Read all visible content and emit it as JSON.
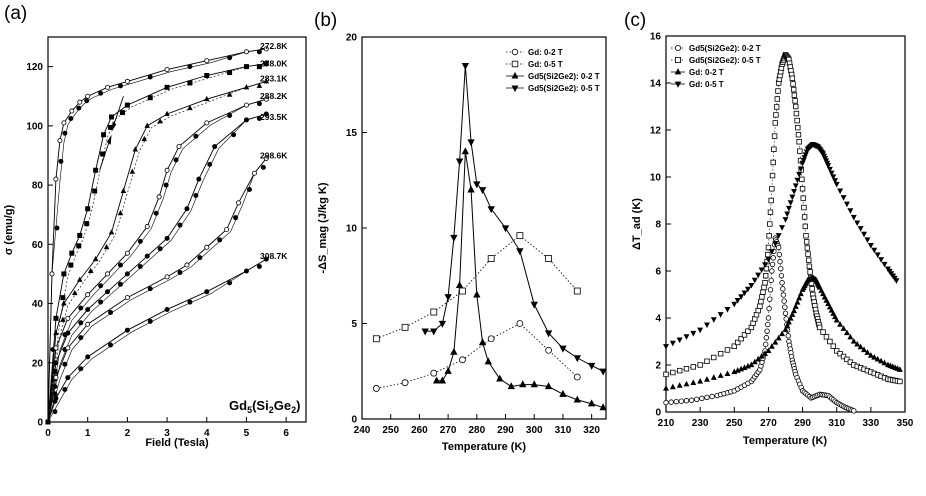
{
  "figure": {
    "panel_labels": [
      "(a)",
      "(b)",
      "(c)"
    ]
  },
  "chart_data": [
    {
      "id": "a",
      "type": "line",
      "xlabel": "Field (Tesla)",
      "ylabel": "σ (emu/g)",
      "xlim": [
        0,
        6.5
      ],
      "ylim": [
        0,
        130
      ],
      "xticks": [
        0,
        1,
        2,
        3,
        4,
        5,
        6
      ],
      "yticks": [
        0,
        20,
        40,
        60,
        80,
        100,
        120
      ],
      "annotation": "Gd5(Si2Ge2)",
      "series": [
        {
          "name": "272.8K",
          "label_y": 127,
          "x": [
            0,
            0.1,
            0.2,
            0.3,
            0.4,
            0.6,
            0.8,
            1,
            1.5,
            2,
            3,
            4,
            5,
            5.5
          ],
          "y": [
            0,
            50,
            82,
            95,
            101,
            105,
            108,
            110,
            113,
            115,
            119,
            122,
            125,
            126
          ]
        },
        {
          "name": "278.0K",
          "label_y": 121,
          "x": [
            0,
            0.2,
            0.4,
            0.6,
            0.8,
            1,
            1.2,
            1.4,
            1.6,
            2,
            3,
            4,
            5,
            5.5
          ],
          "y": [
            0,
            35,
            50,
            57,
            63,
            72,
            85,
            97,
            103,
            107,
            113,
            117,
            120,
            121
          ]
        },
        {
          "name": "283.1K",
          "label_y": 116,
          "x": [
            0,
            0.2,
            0.4,
            0.8,
            1.2,
            1.6,
            1.9,
            2.2,
            2.5,
            3,
            4,
            5,
            5.5
          ],
          "y": [
            0,
            30,
            40,
            48,
            55,
            64,
            78,
            92,
            100,
            104,
            109,
            113,
            115
          ]
        },
        {
          "name": "288.2K",
          "label_y": 110,
          "x": [
            0,
            0.2,
            0.5,
            1,
            1.5,
            2,
            2.5,
            2.8,
            3,
            3.3,
            4,
            5,
            5.5
          ],
          "y": [
            0,
            25,
            35,
            43,
            50,
            57,
            66,
            76,
            85,
            93,
            101,
            107,
            109
          ]
        },
        {
          "name": "293.5K",
          "label_y": 103,
          "x": [
            0,
            0.2,
            0.5,
            1,
            1.5,
            2,
            2.5,
            3,
            3.5,
            3.8,
            4.2,
            5,
            5.5
          ],
          "y": [
            0,
            20,
            30,
            38,
            44,
            50,
            56,
            62,
            72,
            82,
            93,
            102,
            104
          ]
        },
        {
          "name": "298.6K",
          "label_y": 90,
          "x": [
            0,
            0.2,
            0.5,
            1,
            2,
            3,
            3.5,
            4,
            4.5,
            4.8,
            5.2,
            5.5
          ],
          "y": [
            0,
            15,
            25,
            33,
            42,
            49,
            53,
            59,
            65,
            74,
            84,
            89
          ]
        },
        {
          "name": "308.7K",
          "label_y": 56,
          "x": [
            0,
            0.2,
            0.5,
            1,
            2,
            3,
            4,
            5,
            5.5
          ],
          "y": [
            0,
            8,
            15,
            22,
            31,
            38,
            44,
            51,
            55
          ]
        }
      ]
    },
    {
      "id": "b",
      "type": "line",
      "xlabel": "Temperature (K)",
      "ylabel": "-ΔS_mag (J/kg K)",
      "xlim": [
        240,
        325
      ],
      "ylim": [
        0,
        20
      ],
      "xticks": [
        240,
        250,
        260,
        270,
        280,
        290,
        300,
        310,
        320
      ],
      "yticks": [
        0,
        5,
        10,
        15,
        20
      ],
      "series": [
        {
          "name": "Gd: 0-2 T",
          "marker": "circle-open",
          "x": [
            245,
            255,
            265,
            275,
            285,
            295,
            305,
            315
          ],
          "y": [
            1.6,
            1.9,
            2.4,
            3.1,
            4.2,
            5.0,
            3.6,
            2.2
          ]
        },
        {
          "name": "Gd: 0-5 T",
          "marker": "square-open",
          "x": [
            245,
            255,
            265,
            275,
            285,
            295,
            305,
            315
          ],
          "y": [
            4.2,
            4.8,
            5.6,
            6.7,
            8.4,
            9.6,
            8.4,
            6.7
          ]
        },
        {
          "name": "Gd5(Si2Ge2): 0-2 T",
          "marker": "triangle-up-filled",
          "x": [
            266,
            268,
            270,
            272,
            274,
            276,
            278,
            280,
            282,
            284,
            288,
            292,
            296,
            300,
            305,
            310,
            315,
            320,
            324
          ],
          "y": [
            2.0,
            2.0,
            2.5,
            3.5,
            7.0,
            14.0,
            12.0,
            6.5,
            4.0,
            3.0,
            2.1,
            1.7,
            1.8,
            1.8,
            1.7,
            1.3,
            1.0,
            0.8,
            0.6
          ]
        },
        {
          "name": "Gd5(Si2Ge2): 0-5 T",
          "marker": "triangle-down-filled",
          "x": [
            262,
            265,
            268,
            270,
            272,
            274,
            276,
            278,
            280,
            282,
            285,
            290,
            295,
            300,
            305,
            310,
            315,
            320,
            324
          ],
          "y": [
            4.6,
            4.6,
            5.0,
            6.4,
            9.5,
            13.5,
            18.5,
            14.5,
            12.3,
            12.0,
            11.0,
            10.0,
            8.8,
            6.0,
            4.5,
            3.7,
            3.2,
            2.8,
            2.5
          ]
        }
      ]
    },
    {
      "id": "c",
      "type": "scatter",
      "xlabel": "Temperature (K)",
      "ylabel": "ΔT_ad (K)",
      "xlim": [
        210,
        350
      ],
      "ylim": [
        0,
        16
      ],
      "xticks": [
        210,
        230,
        250,
        270,
        290,
        310,
        330,
        350
      ],
      "yticks": [
        0,
        2,
        4,
        6,
        8,
        10,
        12,
        14,
        16
      ],
      "series": [
        {
          "name": "Gd5(Si2Ge2): 0-2 T",
          "marker": "circle-open",
          "x": [
            210,
            225,
            240,
            250,
            260,
            265,
            268,
            270,
            272,
            274,
            276,
            278,
            280,
            282,
            284,
            286,
            290,
            295,
            300,
            305,
            310,
            315,
            320
          ],
          "y": [
            0.4,
            0.5,
            0.7,
            0.9,
            1.3,
            1.8,
            2.6,
            4.0,
            6.0,
            7.4,
            7.0,
            5.5,
            4.2,
            3.0,
            2.2,
            1.6,
            0.9,
            0.6,
            0.75,
            0.7,
            0.4,
            0.2,
            0.05
          ]
        },
        {
          "name": "Gd5(Si2Ge2): 0-5 T",
          "marker": "square-open",
          "x": [
            210,
            230,
            250,
            260,
            265,
            268,
            270,
            272,
            274,
            276,
            278,
            280,
            282,
            284,
            286,
            288,
            290,
            292,
            294,
            296,
            298,
            300,
            310,
            320,
            330,
            340,
            347
          ],
          "y": [
            1.6,
            2.0,
            2.8,
            3.6,
            4.5,
            5.5,
            7.0,
            9.5,
            12.3,
            14.0,
            14.8,
            15.2,
            15.0,
            14.2,
            13.0,
            11.5,
            9.5,
            7.5,
            6.2,
            5.0,
            4.2,
            3.6,
            2.6,
            2.0,
            1.7,
            1.4,
            1.3
          ]
        },
        {
          "name": "Gd: 0-2 T",
          "marker": "triangle-up-filled",
          "x": [
            210,
            230,
            250,
            260,
            270,
            280,
            285,
            290,
            293,
            296,
            298,
            300,
            305,
            310,
            320,
            330,
            340,
            347
          ],
          "y": [
            1.0,
            1.3,
            1.7,
            2.0,
            2.6,
            3.5,
            4.3,
            5.2,
            5.6,
            5.7,
            5.6,
            5.3,
            4.6,
            3.9,
            3.0,
            2.4,
            2.0,
            1.8
          ]
        },
        {
          "name": "Gd: 0-5 T",
          "marker": "triangle-down-filled",
          "x": [
            210,
            230,
            250,
            260,
            270,
            280,
            285,
            290,
            293,
            296,
            299,
            302,
            305,
            310,
            320,
            330,
            340,
            345
          ],
          "y": [
            2.8,
            3.5,
            4.6,
            5.4,
            6.5,
            8.2,
            9.4,
            10.6,
            11.2,
            11.4,
            11.3,
            11.0,
            10.5,
            9.7,
            8.3,
            7.1,
            6.1,
            5.6
          ]
        }
      ]
    }
  ]
}
